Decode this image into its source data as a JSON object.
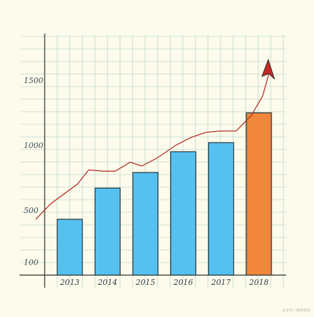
{
  "chart_data": {
    "type": "bar",
    "categories": [
      "2013",
      "2014",
      "2015",
      "2016",
      "2017",
      "2018"
    ],
    "values": [
      430,
      670,
      790,
      950,
      1020,
      1250
    ],
    "bar_colors": [
      "#56c1ef",
      "#56c1ef",
      "#56c1ef",
      "#56c1ef",
      "#56c1ef",
      "#f0873a"
    ],
    "y_ticks": [
      {
        "value": 100,
        "label": "100"
      },
      {
        "value": 500,
        "label": "500"
      },
      {
        "value": 1000,
        "label": "1000"
      },
      {
        "value": 1500,
        "label": "1500"
      }
    ],
    "ylim": [
      0,
      1850
    ],
    "trend_line": {
      "type": "line",
      "color": "#b5302a",
      "arrow_color": "#c42a22",
      "x": [
        -0.9,
        -0.5,
        0.2,
        0.5,
        0.9,
        1.2,
        1.6,
        1.9,
        2.3,
        2.8,
        3.2,
        3.6,
        4.0,
        4.4,
        4.8,
        5.1
      ],
      "y": [
        430,
        550,
        700,
        810,
        800,
        800,
        870,
        840,
        900,
        1000,
        1060,
        1100,
        1110,
        1110,
        1230,
        1380
      ]
    },
    "grid": true,
    "background_color": "#fdfbec",
    "grid_color": "#b8d8cf",
    "watermark": "头条号 / 趋势成站"
  }
}
